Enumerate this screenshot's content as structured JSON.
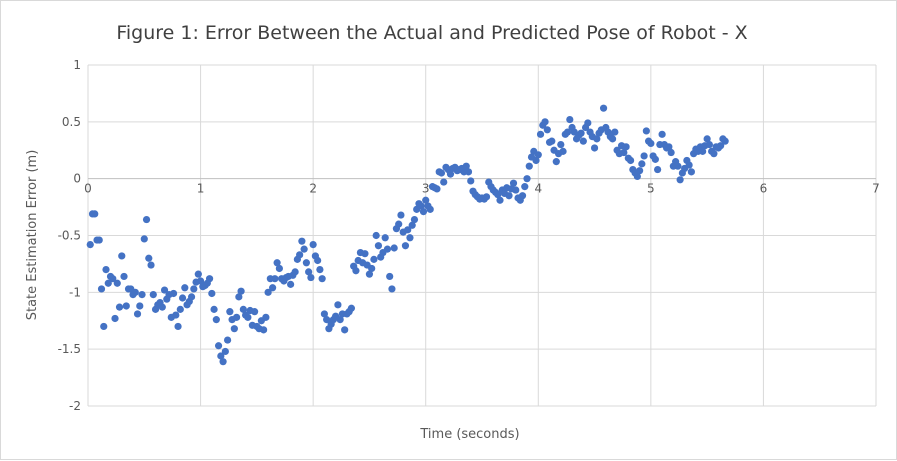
{
  "chart_data": {
    "type": "scatter",
    "title": "Figure 1: Error Between the Actual and Predicted Pose of Robot - X",
    "xlabel": "Time (seconds)",
    "ylabel": "State Estimation Error (m)",
    "xlim": [
      0,
      7
    ],
    "ylim": [
      -2,
      1
    ],
    "xticks": [
      "0",
      "1",
      "2",
      "3",
      "4",
      "5",
      "6",
      "7"
    ],
    "yticks": [
      "1",
      "0.5",
      "0",
      "-0.5",
      "-1",
      "-1.5",
      "-2"
    ],
    "grid": true,
    "legend": "none",
    "marker_color": "#4472c4",
    "points": [
      [
        0.02,
        -0.58
      ],
      [
        0.04,
        -0.31
      ],
      [
        0.06,
        -0.31
      ],
      [
        0.08,
        -0.54
      ],
      [
        0.1,
        -0.54
      ],
      [
        0.12,
        -0.97
      ],
      [
        0.14,
        -1.3
      ],
      [
        0.16,
        -0.8
      ],
      [
        0.18,
        -0.92
      ],
      [
        0.2,
        -0.86
      ],
      [
        0.22,
        -0.88
      ],
      [
        0.24,
        -1.23
      ],
      [
        0.26,
        -0.92
      ],
      [
        0.28,
        -1.13
      ],
      [
        0.3,
        -0.68
      ],
      [
        0.32,
        -0.86
      ],
      [
        0.34,
        -1.12
      ],
      [
        0.36,
        -0.97
      ],
      [
        0.38,
        -0.97
      ],
      [
        0.4,
        -1.02
      ],
      [
        0.42,
        -1.0
      ],
      [
        0.44,
        -1.19
      ],
      [
        0.46,
        -1.12
      ],
      [
        0.48,
        -1.02
      ],
      [
        0.5,
        -0.53
      ],
      [
        0.52,
        -0.36
      ],
      [
        0.54,
        -0.7
      ],
      [
        0.56,
        -0.76
      ],
      [
        0.58,
        -1.02
      ],
      [
        0.6,
        -1.15
      ],
      [
        0.62,
        -1.11
      ],
      [
        0.64,
        -1.09
      ],
      [
        0.66,
        -1.13
      ],
      [
        0.68,
        -0.98
      ],
      [
        0.7,
        -1.06
      ],
      [
        0.72,
        -1.02
      ],
      [
        0.74,
        -1.22
      ],
      [
        0.76,
        -1.01
      ],
      [
        0.78,
        -1.2
      ],
      [
        0.8,
        -1.3
      ],
      [
        0.82,
        -1.15
      ],
      [
        0.84,
        -1.05
      ],
      [
        0.86,
        -0.96
      ],
      [
        0.88,
        -1.11
      ],
      [
        0.9,
        -1.08
      ],
      [
        0.92,
        -1.04
      ],
      [
        0.94,
        -0.97
      ],
      [
        0.96,
        -0.91
      ],
      [
        0.98,
        -0.84
      ],
      [
        1.0,
        -0.9
      ],
      [
        1.02,
        -0.95
      ],
      [
        1.04,
        -0.94
      ],
      [
        1.06,
        -0.92
      ],
      [
        1.08,
        -0.88
      ],
      [
        1.1,
        -1.01
      ],
      [
        1.12,
        -1.15
      ],
      [
        1.14,
        -1.24
      ],
      [
        1.16,
        -1.47
      ],
      [
        1.18,
        -1.56
      ],
      [
        1.2,
        -1.61
      ],
      [
        1.22,
        -1.52
      ],
      [
        1.24,
        -1.42
      ],
      [
        1.26,
        -1.17
      ],
      [
        1.28,
        -1.24
      ],
      [
        1.3,
        -1.32
      ],
      [
        1.32,
        -1.22
      ],
      [
        1.34,
        -1.04
      ],
      [
        1.36,
        -0.99
      ],
      [
        1.38,
        -1.15
      ],
      [
        1.4,
        -1.2
      ],
      [
        1.42,
        -1.22
      ],
      [
        1.44,
        -1.16
      ],
      [
        1.46,
        -1.29
      ],
      [
        1.48,
        -1.17
      ],
      [
        1.5,
        -1.3
      ],
      [
        1.52,
        -1.32
      ],
      [
        1.54,
        -1.25
      ],
      [
        1.56,
        -1.33
      ],
      [
        1.58,
        -1.22
      ],
      [
        1.6,
        -1.0
      ],
      [
        1.62,
        -0.88
      ],
      [
        1.64,
        -0.96
      ],
      [
        1.66,
        -0.88
      ],
      [
        1.68,
        -0.74
      ],
      [
        1.7,
        -0.79
      ],
      [
        1.72,
        -0.88
      ],
      [
        1.74,
        -0.9
      ],
      [
        1.76,
        -0.87
      ],
      [
        1.78,
        -0.86
      ],
      [
        1.8,
        -0.93
      ],
      [
        1.82,
        -0.85
      ],
      [
        1.84,
        -0.82
      ],
      [
        1.86,
        -0.71
      ],
      [
        1.88,
        -0.67
      ],
      [
        1.9,
        -0.55
      ],
      [
        1.92,
        -0.62
      ],
      [
        1.94,
        -0.74
      ],
      [
        1.96,
        -0.82
      ],
      [
        1.98,
        -0.87
      ],
      [
        2.0,
        -0.58
      ],
      [
        2.02,
        -0.68
      ],
      [
        2.04,
        -0.72
      ],
      [
        2.06,
        -0.8
      ],
      [
        2.08,
        -0.88
      ],
      [
        2.1,
        -1.19
      ],
      [
        2.12,
        -1.24
      ],
      [
        2.14,
        -1.32
      ],
      [
        2.16,
        -1.28
      ],
      [
        2.18,
        -1.24
      ],
      [
        2.2,
        -1.21
      ],
      [
        2.22,
        -1.11
      ],
      [
        2.24,
        -1.24
      ],
      [
        2.26,
        -1.19
      ],
      [
        2.28,
        -1.33
      ],
      [
        2.3,
        -1.19
      ],
      [
        2.32,
        -1.17
      ],
      [
        2.34,
        -1.14
      ],
      [
        2.36,
        -0.77
      ],
      [
        2.38,
        -0.81
      ],
      [
        2.4,
        -0.72
      ],
      [
        2.42,
        -0.65
      ],
      [
        2.44,
        -0.74
      ],
      [
        2.46,
        -0.66
      ],
      [
        2.48,
        -0.76
      ],
      [
        2.5,
        -0.84
      ],
      [
        2.52,
        -0.79
      ],
      [
        2.54,
        -0.71
      ],
      [
        2.56,
        -0.5
      ],
      [
        2.58,
        -0.59
      ],
      [
        2.6,
        -0.69
      ],
      [
        2.62,
        -0.65
      ],
      [
        2.64,
        -0.52
      ],
      [
        2.66,
        -0.62
      ],
      [
        2.68,
        -0.86
      ],
      [
        2.7,
        -0.97
      ],
      [
        2.72,
        -0.61
      ],
      [
        2.74,
        -0.44
      ],
      [
        2.76,
        -0.4
      ],
      [
        2.78,
        -0.32
      ],
      [
        2.8,
        -0.47
      ],
      [
        2.82,
        -0.59
      ],
      [
        2.84,
        -0.45
      ],
      [
        2.86,
        -0.52
      ],
      [
        2.88,
        -0.41
      ],
      [
        2.9,
        -0.36
      ],
      [
        2.92,
        -0.27
      ],
      [
        2.94,
        -0.22
      ],
      [
        2.96,
        -0.24
      ],
      [
        2.98,
        -0.29
      ],
      [
        3.0,
        -0.19
      ],
      [
        3.02,
        -0.24
      ],
      [
        3.04,
        -0.27
      ],
      [
        3.06,
        -0.07
      ],
      [
        3.08,
        -0.08
      ],
      [
        3.1,
        -0.09
      ],
      [
        3.12,
        0.06
      ],
      [
        3.14,
        0.05
      ],
      [
        3.16,
        -0.03
      ],
      [
        3.18,
        0.1
      ],
      [
        3.2,
        0.08
      ],
      [
        3.22,
        0.04
      ],
      [
        3.24,
        0.09
      ],
      [
        3.26,
        0.1
      ],
      [
        3.28,
        0.07
      ],
      [
        3.3,
        0.08
      ],
      [
        3.32,
        0.09
      ],
      [
        3.34,
        0.06
      ],
      [
        3.36,
        0.11
      ],
      [
        3.38,
        0.06
      ],
      [
        3.4,
        -0.02
      ],
      [
        3.42,
        -0.11
      ],
      [
        3.44,
        -0.14
      ],
      [
        3.46,
        -0.16
      ],
      [
        3.48,
        -0.18
      ],
      [
        3.5,
        -0.17
      ],
      [
        3.52,
        -0.18
      ],
      [
        3.54,
        -0.16
      ],
      [
        3.56,
        -0.03
      ],
      [
        3.58,
        -0.07
      ],
      [
        3.6,
        -0.1
      ],
      [
        3.62,
        -0.12
      ],
      [
        3.64,
        -0.14
      ],
      [
        3.66,
        -0.19
      ],
      [
        3.68,
        -0.1
      ],
      [
        3.7,
        -0.13
      ],
      [
        3.72,
        -0.08
      ],
      [
        3.74,
        -0.15
      ],
      [
        3.76,
        -0.09
      ],
      [
        3.78,
        -0.04
      ],
      [
        3.8,
        -0.1
      ],
      [
        3.82,
        -0.17
      ],
      [
        3.84,
        -0.19
      ],
      [
        3.86,
        -0.15
      ],
      [
        3.88,
        -0.07
      ],
      [
        3.9,
        0.0
      ],
      [
        3.92,
        0.11
      ],
      [
        3.94,
        0.19
      ],
      [
        3.96,
        0.24
      ],
      [
        3.98,
        0.16
      ],
      [
        4.0,
        0.21
      ],
      [
        4.02,
        0.39
      ],
      [
        4.04,
        0.47
      ],
      [
        4.06,
        0.5
      ],
      [
        4.08,
        0.43
      ],
      [
        4.1,
        0.32
      ],
      [
        4.12,
        0.33
      ],
      [
        4.14,
        0.25
      ],
      [
        4.16,
        0.15
      ],
      [
        4.18,
        0.22
      ],
      [
        4.2,
        0.3
      ],
      [
        4.22,
        0.24
      ],
      [
        4.24,
        0.39
      ],
      [
        4.26,
        0.41
      ],
      [
        4.28,
        0.52
      ],
      [
        4.3,
        0.45
      ],
      [
        4.32,
        0.41
      ],
      [
        4.34,
        0.35
      ],
      [
        4.36,
        0.38
      ],
      [
        4.38,
        0.4
      ],
      [
        4.4,
        0.33
      ],
      [
        4.42,
        0.45
      ],
      [
        4.44,
        0.49
      ],
      [
        4.46,
        0.41
      ],
      [
        4.48,
        0.37
      ],
      [
        4.5,
        0.27
      ],
      [
        4.52,
        0.35
      ],
      [
        4.54,
        0.4
      ],
      [
        4.56,
        0.43
      ],
      [
        4.58,
        0.62
      ],
      [
        4.6,
        0.45
      ],
      [
        4.62,
        0.41
      ],
      [
        4.64,
        0.37
      ],
      [
        4.66,
        0.35
      ],
      [
        4.68,
        0.41
      ],
      [
        4.7,
        0.25
      ],
      [
        4.72,
        0.22
      ],
      [
        4.74,
        0.29
      ],
      [
        4.76,
        0.23
      ],
      [
        4.78,
        0.28
      ],
      [
        4.8,
        0.18
      ],
      [
        4.82,
        0.16
      ],
      [
        4.84,
        0.08
      ],
      [
        4.86,
        0.05
      ],
      [
        4.88,
        0.02
      ],
      [
        4.9,
        0.07
      ],
      [
        4.92,
        0.13
      ],
      [
        4.94,
        0.2
      ],
      [
        4.96,
        0.42
      ],
      [
        4.98,
        0.33
      ],
      [
        5.0,
        0.31
      ],
      [
        5.02,
        0.2
      ],
      [
        5.04,
        0.17
      ],
      [
        5.06,
        0.08
      ],
      [
        5.08,
        0.3
      ],
      [
        5.1,
        0.39
      ],
      [
        5.12,
        0.3
      ],
      [
        5.14,
        0.27
      ],
      [
        5.16,
        0.28
      ],
      [
        5.18,
        0.23
      ],
      [
        5.2,
        0.11
      ],
      [
        5.22,
        0.15
      ],
      [
        5.24,
        0.11
      ],
      [
        5.26,
        -0.01
      ],
      [
        5.28,
        0.05
      ],
      [
        5.3,
        0.09
      ],
      [
        5.32,
        0.16
      ],
      [
        5.34,
        0.12
      ],
      [
        5.36,
        0.06
      ],
      [
        5.38,
        0.22
      ],
      [
        5.4,
        0.26
      ],
      [
        5.42,
        0.24
      ],
      [
        5.44,
        0.28
      ],
      [
        5.46,
        0.24
      ],
      [
        5.48,
        0.29
      ],
      [
        5.5,
        0.35
      ],
      [
        5.52,
        0.3
      ],
      [
        5.54,
        0.24
      ],
      [
        5.56,
        0.22
      ],
      [
        5.58,
        0.28
      ],
      [
        5.6,
        0.27
      ],
      [
        5.62,
        0.29
      ],
      [
        5.64,
        0.35
      ],
      [
        5.66,
        0.33
      ]
    ]
  }
}
